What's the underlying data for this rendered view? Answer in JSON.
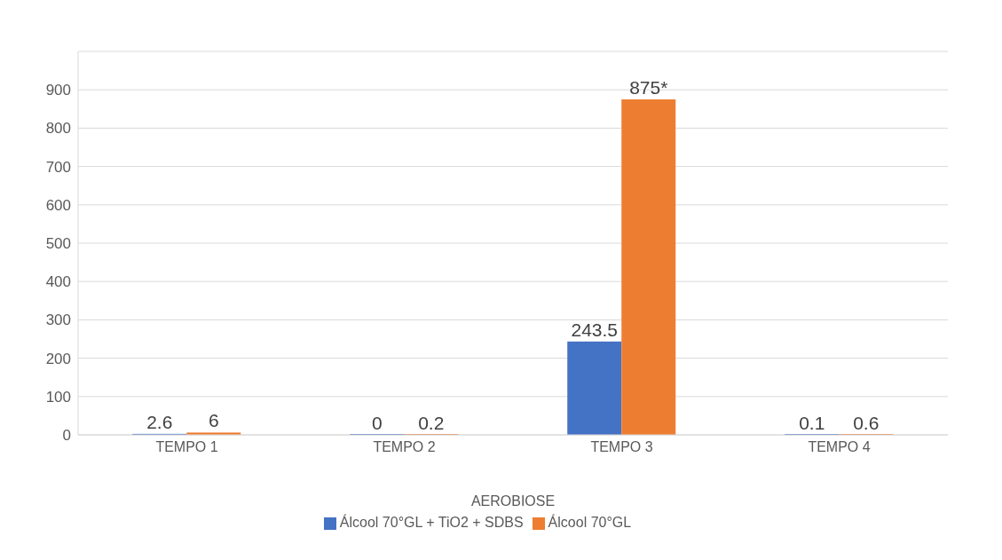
{
  "chart_data": {
    "type": "bar",
    "xlabel": "AEROBIOSE",
    "categories": [
      "TEMPO 1",
      "TEMPO 2",
      "TEMPO 3",
      "TEMPO 4"
    ],
    "series": [
      {
        "name": "Álcool 70°GL + TiO2 + SDBS",
        "color": "#4472c4",
        "values": [
          2.6,
          0,
          243.5,
          0.1
        ],
        "value_labels": [
          "2.6",
          "0",
          "243.5",
          "0.1"
        ]
      },
      {
        "name": "Álcool 70°GL",
        "color": "#ed7d31",
        "values": [
          6,
          0.2,
          875,
          0.6
        ],
        "value_labels": [
          "6",
          "0.2",
          "875*",
          "0.6"
        ]
      }
    ],
    "ylim": [
      0,
      1000
    ],
    "yticks": [
      0,
      100,
      200,
      300,
      400,
      500,
      600,
      700,
      800,
      900,
      {
        "value": 1000,
        "label": null
      }
    ],
    "grid": "y",
    "legend": "bottom"
  }
}
